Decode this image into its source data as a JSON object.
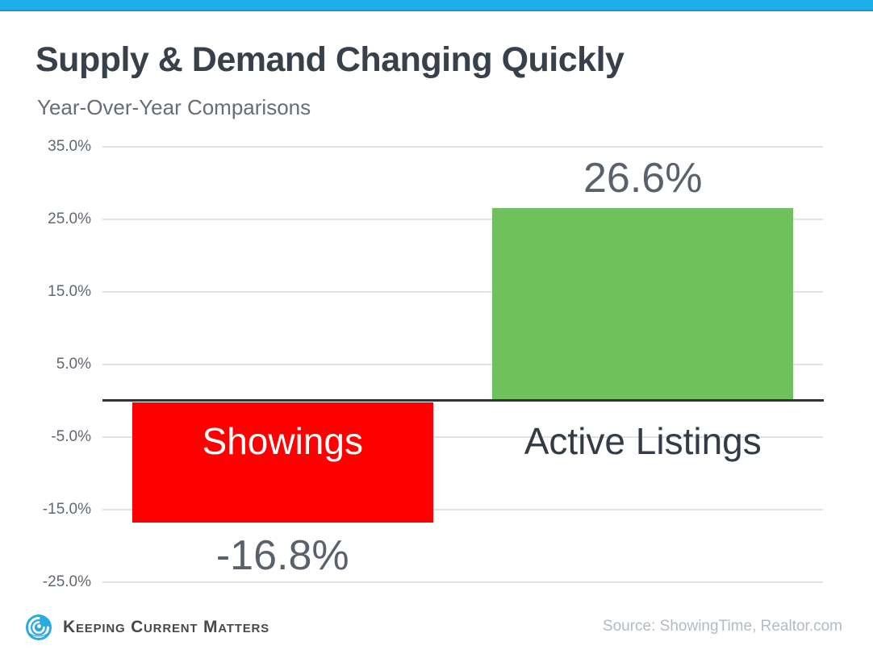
{
  "page": {
    "top_bar_color": "#1caee9",
    "background": "#ffffff"
  },
  "header": {
    "title": "Supply & Demand Changing Quickly",
    "subtitle": "Year-Over-Year Comparisons"
  },
  "chart_data": {
    "type": "bar",
    "title": "Supply & Demand Changing Quickly",
    "subtitle": "Year-Over-Year Comparisons",
    "categories": [
      "Showings",
      "Active Listings"
    ],
    "values": [
      -16.8,
      26.6
    ],
    "value_labels": [
      "-16.8%",
      "26.6%"
    ],
    "xlabel": "",
    "ylabel": "",
    "ylim": [
      -25,
      35
    ],
    "grid": "horizontal",
    "legend": "none",
    "yticks": [
      {
        "label": "35.0%",
        "value": 35
      },
      {
        "label": "25.0%",
        "value": 25
      },
      {
        "label": "15.0%",
        "value": 15
      },
      {
        "label": "5.0%",
        "value": 5
      },
      {
        "label": "-5.0%",
        "value": -5
      },
      {
        "label": "-15.0%",
        "value": -15
      },
      {
        "label": "-25.0%",
        "value": -25
      }
    ],
    "bars": [
      {
        "category": "Showings",
        "value": -16.8,
        "value_label": "-16.8%",
        "color": "#fe0000",
        "category_label_color": "#ffffff"
      },
      {
        "category": "Active Listings",
        "value": 26.6,
        "value_label": "26.6%",
        "color": "#6ec15c",
        "category_label_color": "#333c46"
      }
    ],
    "axis_line_color": "#2e343a",
    "gridline_color": "#e2e2e2",
    "value_label_color": "#59626c",
    "tick_label_color": "#5f6871"
  },
  "footer": {
    "brand": "Keeping Current Matters",
    "brand_color": "#45494a",
    "logo_icon": "kcm-swirl-icon",
    "logo_color": "#29abe2",
    "source": "Source: ShowingTime, Realtor.com",
    "source_color": "#b3bac2"
  }
}
